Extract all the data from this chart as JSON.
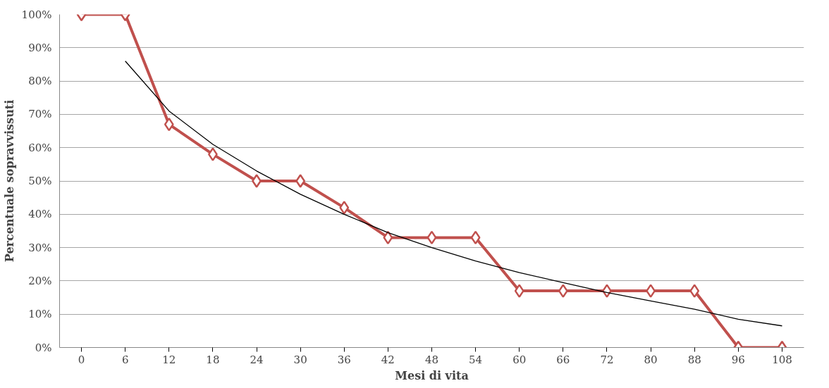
{
  "chart_data": {
    "type": "line",
    "xlabel": "Mesi di vita",
    "ylabel": "Percentuale sopravvissuti",
    "categories": [
      "0",
      "6",
      "12",
      "18",
      "24",
      "30",
      "36",
      "42",
      "48",
      "54",
      "60",
      "66",
      "72",
      "80",
      "88",
      "96",
      "108"
    ],
    "series": [
      {
        "color": "#c0504d",
        "marker": "diamond",
        "values": [
          100,
          100,
          67,
          58,
          50,
          50,
          42,
          33,
          33,
          33,
          17,
          17,
          17,
          17,
          17,
          0,
          0
        ]
      },
      {
        "type": "line",
        "color": "#000000",
        "marker": "none",
        "x": [
          "6",
          "12",
          "18",
          "24",
          "30",
          "36",
          "42",
          "48",
          "54",
          "60",
          "66",
          "72",
          "80",
          "88",
          "96",
          "108"
        ],
        "values": [
          86,
          71,
          61,
          53,
          46,
          40,
          34.5,
          30,
          26,
          22.5,
          19.5,
          16.5,
          14,
          11.5,
          8.5,
          6.5
        ]
      }
    ],
    "ylim": [
      0,
      100
    ],
    "yticks": [
      {
        "value": 0,
        "label": "0%"
      },
      {
        "value": 10,
        "label": "10%"
      },
      {
        "value": 20,
        "label": "20%"
      },
      {
        "value": 30,
        "label": "30%"
      },
      {
        "value": 40,
        "label": "40%"
      },
      {
        "value": 50,
        "label": "50%"
      },
      {
        "value": 60,
        "label": "60%"
      },
      {
        "value": 70,
        "label": "70%"
      },
      {
        "value": 80,
        "label": "80%"
      },
      {
        "value": 90,
        "label": "90%"
      },
      {
        "value": 100,
        "label": "100%"
      }
    ],
    "grid": "y"
  }
}
